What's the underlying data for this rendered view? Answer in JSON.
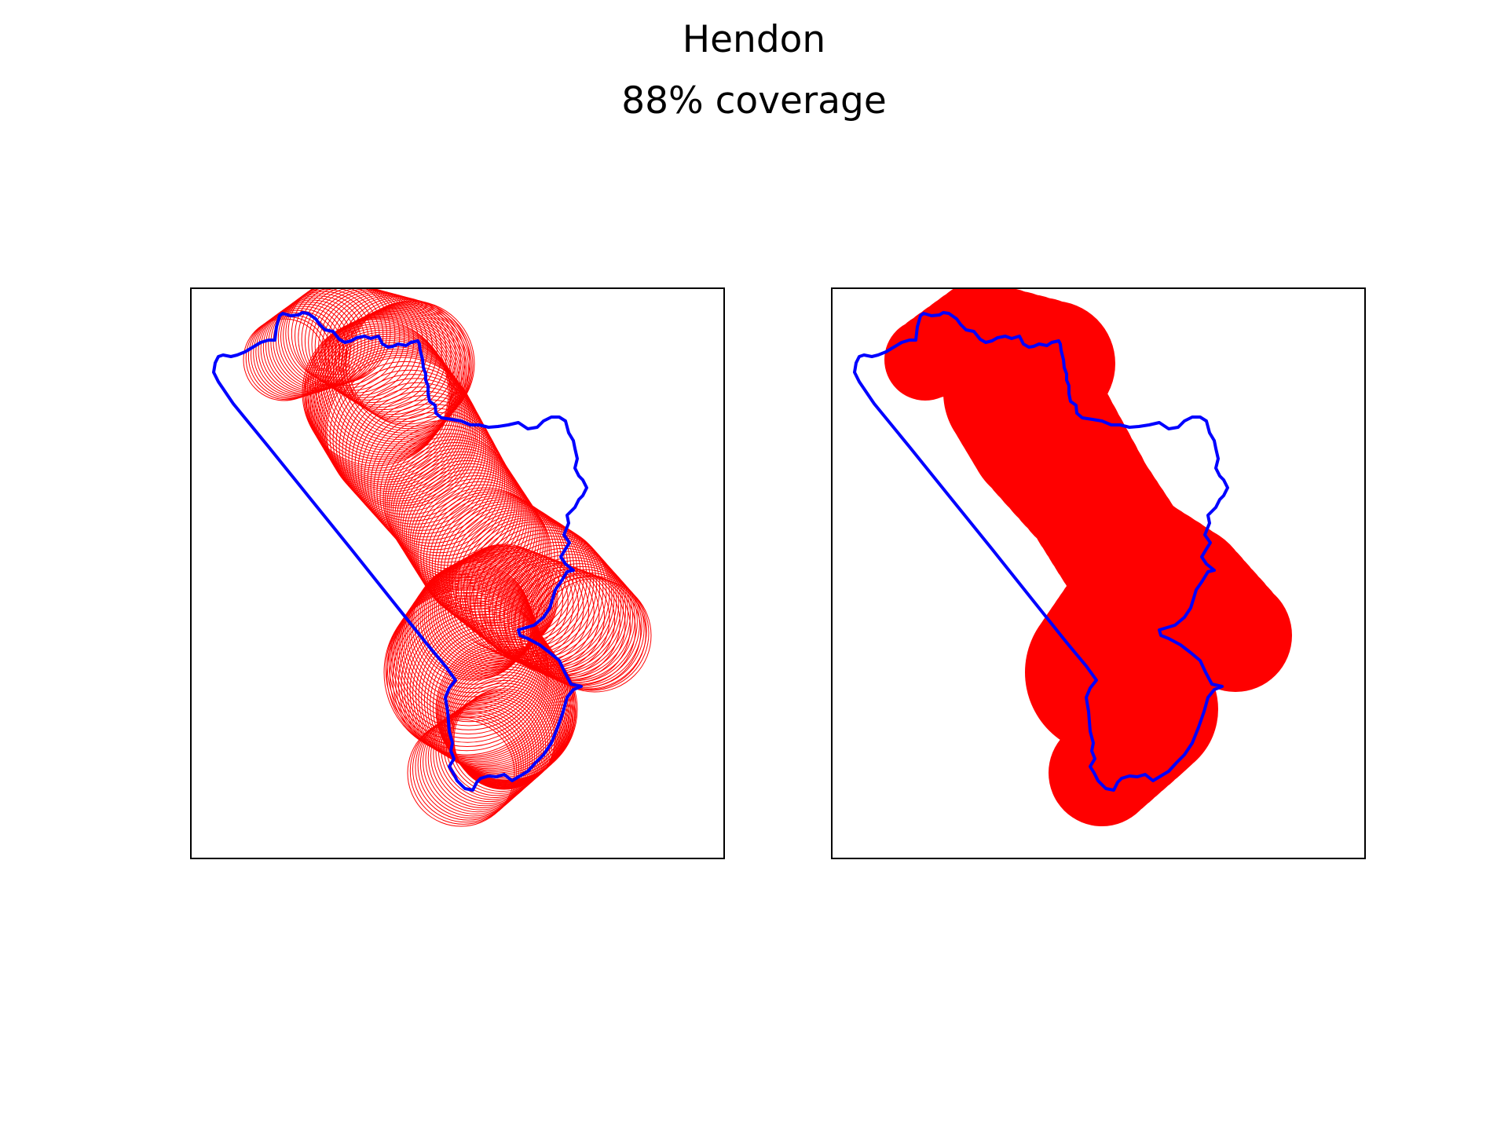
{
  "figure": {
    "title": "Hendon",
    "subtitle": "88% coverage",
    "coverage_percent": 88
  },
  "panels": [
    {
      "id": "left",
      "style": "outlined-circles"
    },
    {
      "id": "right",
      "style": "filled-union"
    }
  ],
  "colors": {
    "boundary": "#0000ff",
    "coverage": "#ff0000",
    "frame": "#000000",
    "background": "#ffffff"
  }
}
